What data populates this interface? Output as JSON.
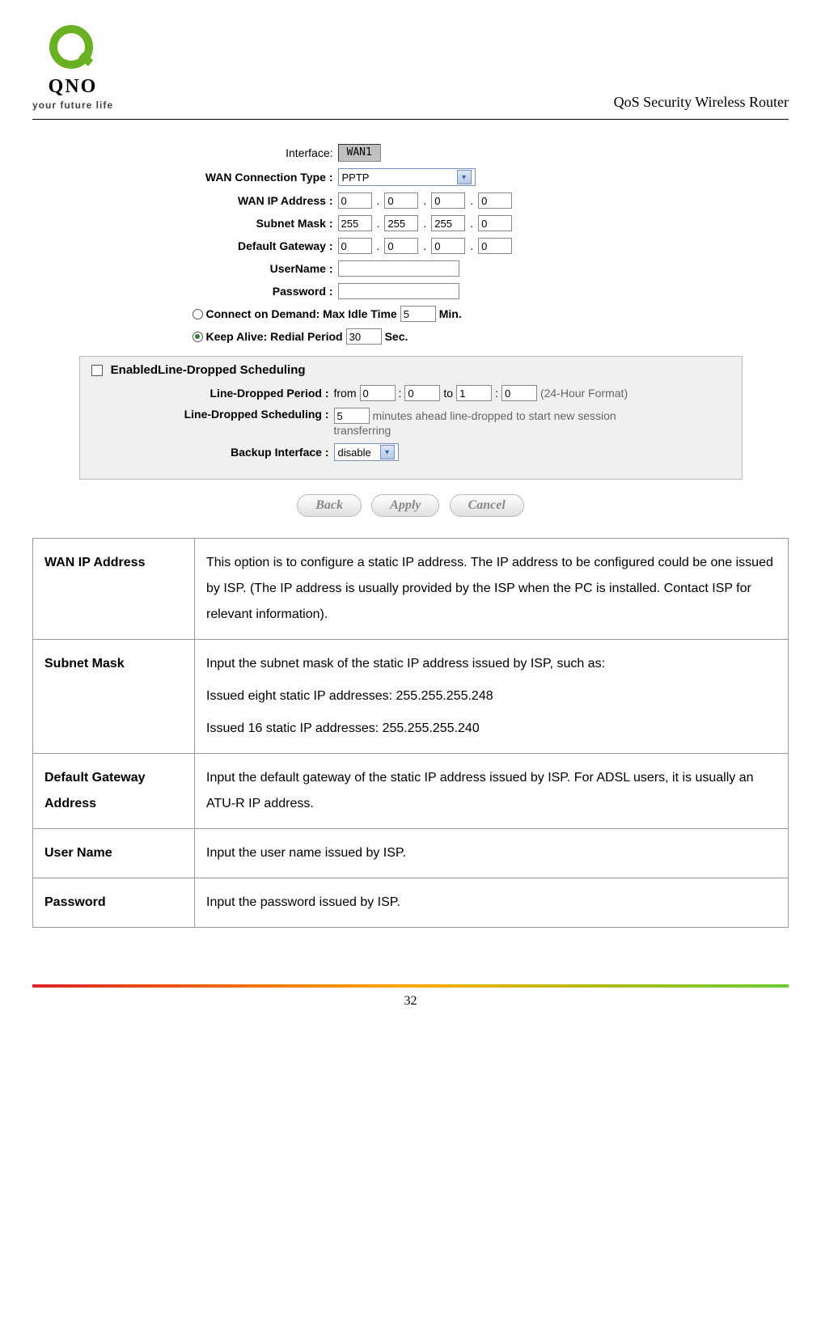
{
  "header": {
    "logo_text": "QNO",
    "logo_sub": "your future life",
    "title": "QoS Security Wireless Router"
  },
  "form": {
    "interface_label": "Interface:",
    "interface_value": "WAN1",
    "conn_type_label": "WAN  Connection Type :",
    "conn_type_value": "PPTP",
    "wan_ip_label": "WAN  IP Address :",
    "wan_ip": [
      "0",
      "0",
      "0",
      "0"
    ],
    "subnet_label": "Subnet Mask :",
    "subnet": [
      "255",
      "255",
      "255",
      "0"
    ],
    "gateway_label": "Default Gateway :",
    "gateway": [
      "0",
      "0",
      "0",
      "0"
    ],
    "username_label": "UserName :",
    "username_value": "",
    "password_label": "Password :",
    "password_value": "",
    "cod_label": "Connect on Demand: Max Idle Time",
    "cod_value": "5",
    "cod_unit": "Min.",
    "ka_label": "Keep Alive: Redial Period",
    "ka_value": "30",
    "ka_unit": "Sec."
  },
  "panel": {
    "check_label": "EnabledLine-Dropped Scheduling",
    "period_label": "Line-Dropped Period :",
    "period_from": "from",
    "period_h1": "0",
    "period_m1": "0",
    "period_to": "to",
    "period_h2": "1",
    "period_m2": "0",
    "period_hint": "(24-Hour Format)",
    "sched_label": "Line-Dropped Scheduling :",
    "sched_value": "5",
    "sched_text1": "minutes ahead line-dropped to start new session",
    "sched_text2": "transferring",
    "backup_label": "Backup Interface :",
    "backup_value": "disable"
  },
  "buttons": {
    "back": "Back",
    "apply": "Apply",
    "cancel": "Cancel"
  },
  "table": {
    "rows": [
      {
        "term": "WAN IP Address",
        "desc": "This option is to configure a static IP address. The IP address to be configured could be one issued by ISP. (The IP address is usually provided by the ISP when the PC is installed. Contact ISP for relevant information)."
      },
      {
        "term": "Subnet Mask",
        "desc": "Input the subnet mask of the static IP address issued by ISP, such as:\nIssued eight static IP addresses: 255.255.255.248\nIssued 16 static IP addresses: 255.255.255.240"
      },
      {
        "term": "Default Gateway Address",
        "desc": "Input the default gateway of the static IP address issued by ISP. For ADSL users, it is usually an ATU-R IP address."
      },
      {
        "term": "User Name",
        "desc": "Input the user name issued by ISP."
      },
      {
        "term": "Password",
        "desc": "Input the password issued by ISP."
      }
    ]
  },
  "footer": {
    "page": "32"
  }
}
